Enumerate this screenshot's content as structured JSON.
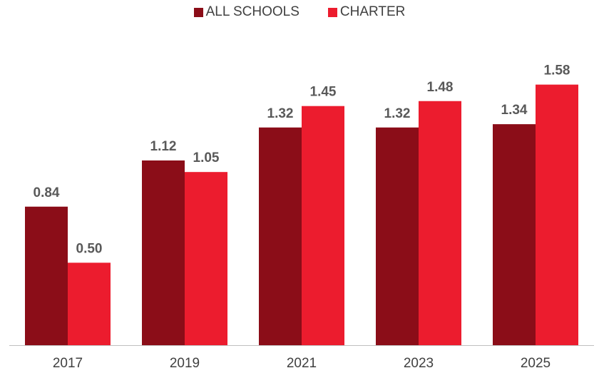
{
  "chart_data": {
    "type": "bar",
    "title": "",
    "xlabel": "",
    "ylabel": "",
    "categories": [
      "2017",
      "2019",
      "2021",
      "2023",
      "2025"
    ],
    "series": [
      {
        "name": "ALL SCHOOLS",
        "color": "#8B0D18",
        "values": [
          0.84,
          1.12,
          1.32,
          1.32,
          1.34
        ],
        "labels": [
          "0.84",
          "1.12",
          "1.32",
          "1.32",
          "1.34"
        ]
      },
      {
        "name": "CHARTER",
        "color": "#EC1C2E",
        "values": [
          0.5,
          1.05,
          1.45,
          1.48,
          1.58
        ],
        "labels": [
          "0.50",
          "1.05",
          "1.45",
          "1.48",
          "1.58"
        ]
      }
    ],
    "ylim": [
      0,
      1.6
    ],
    "grid": false,
    "legend_position": "top-center",
    "axis_color": "#BFBFBF"
  }
}
